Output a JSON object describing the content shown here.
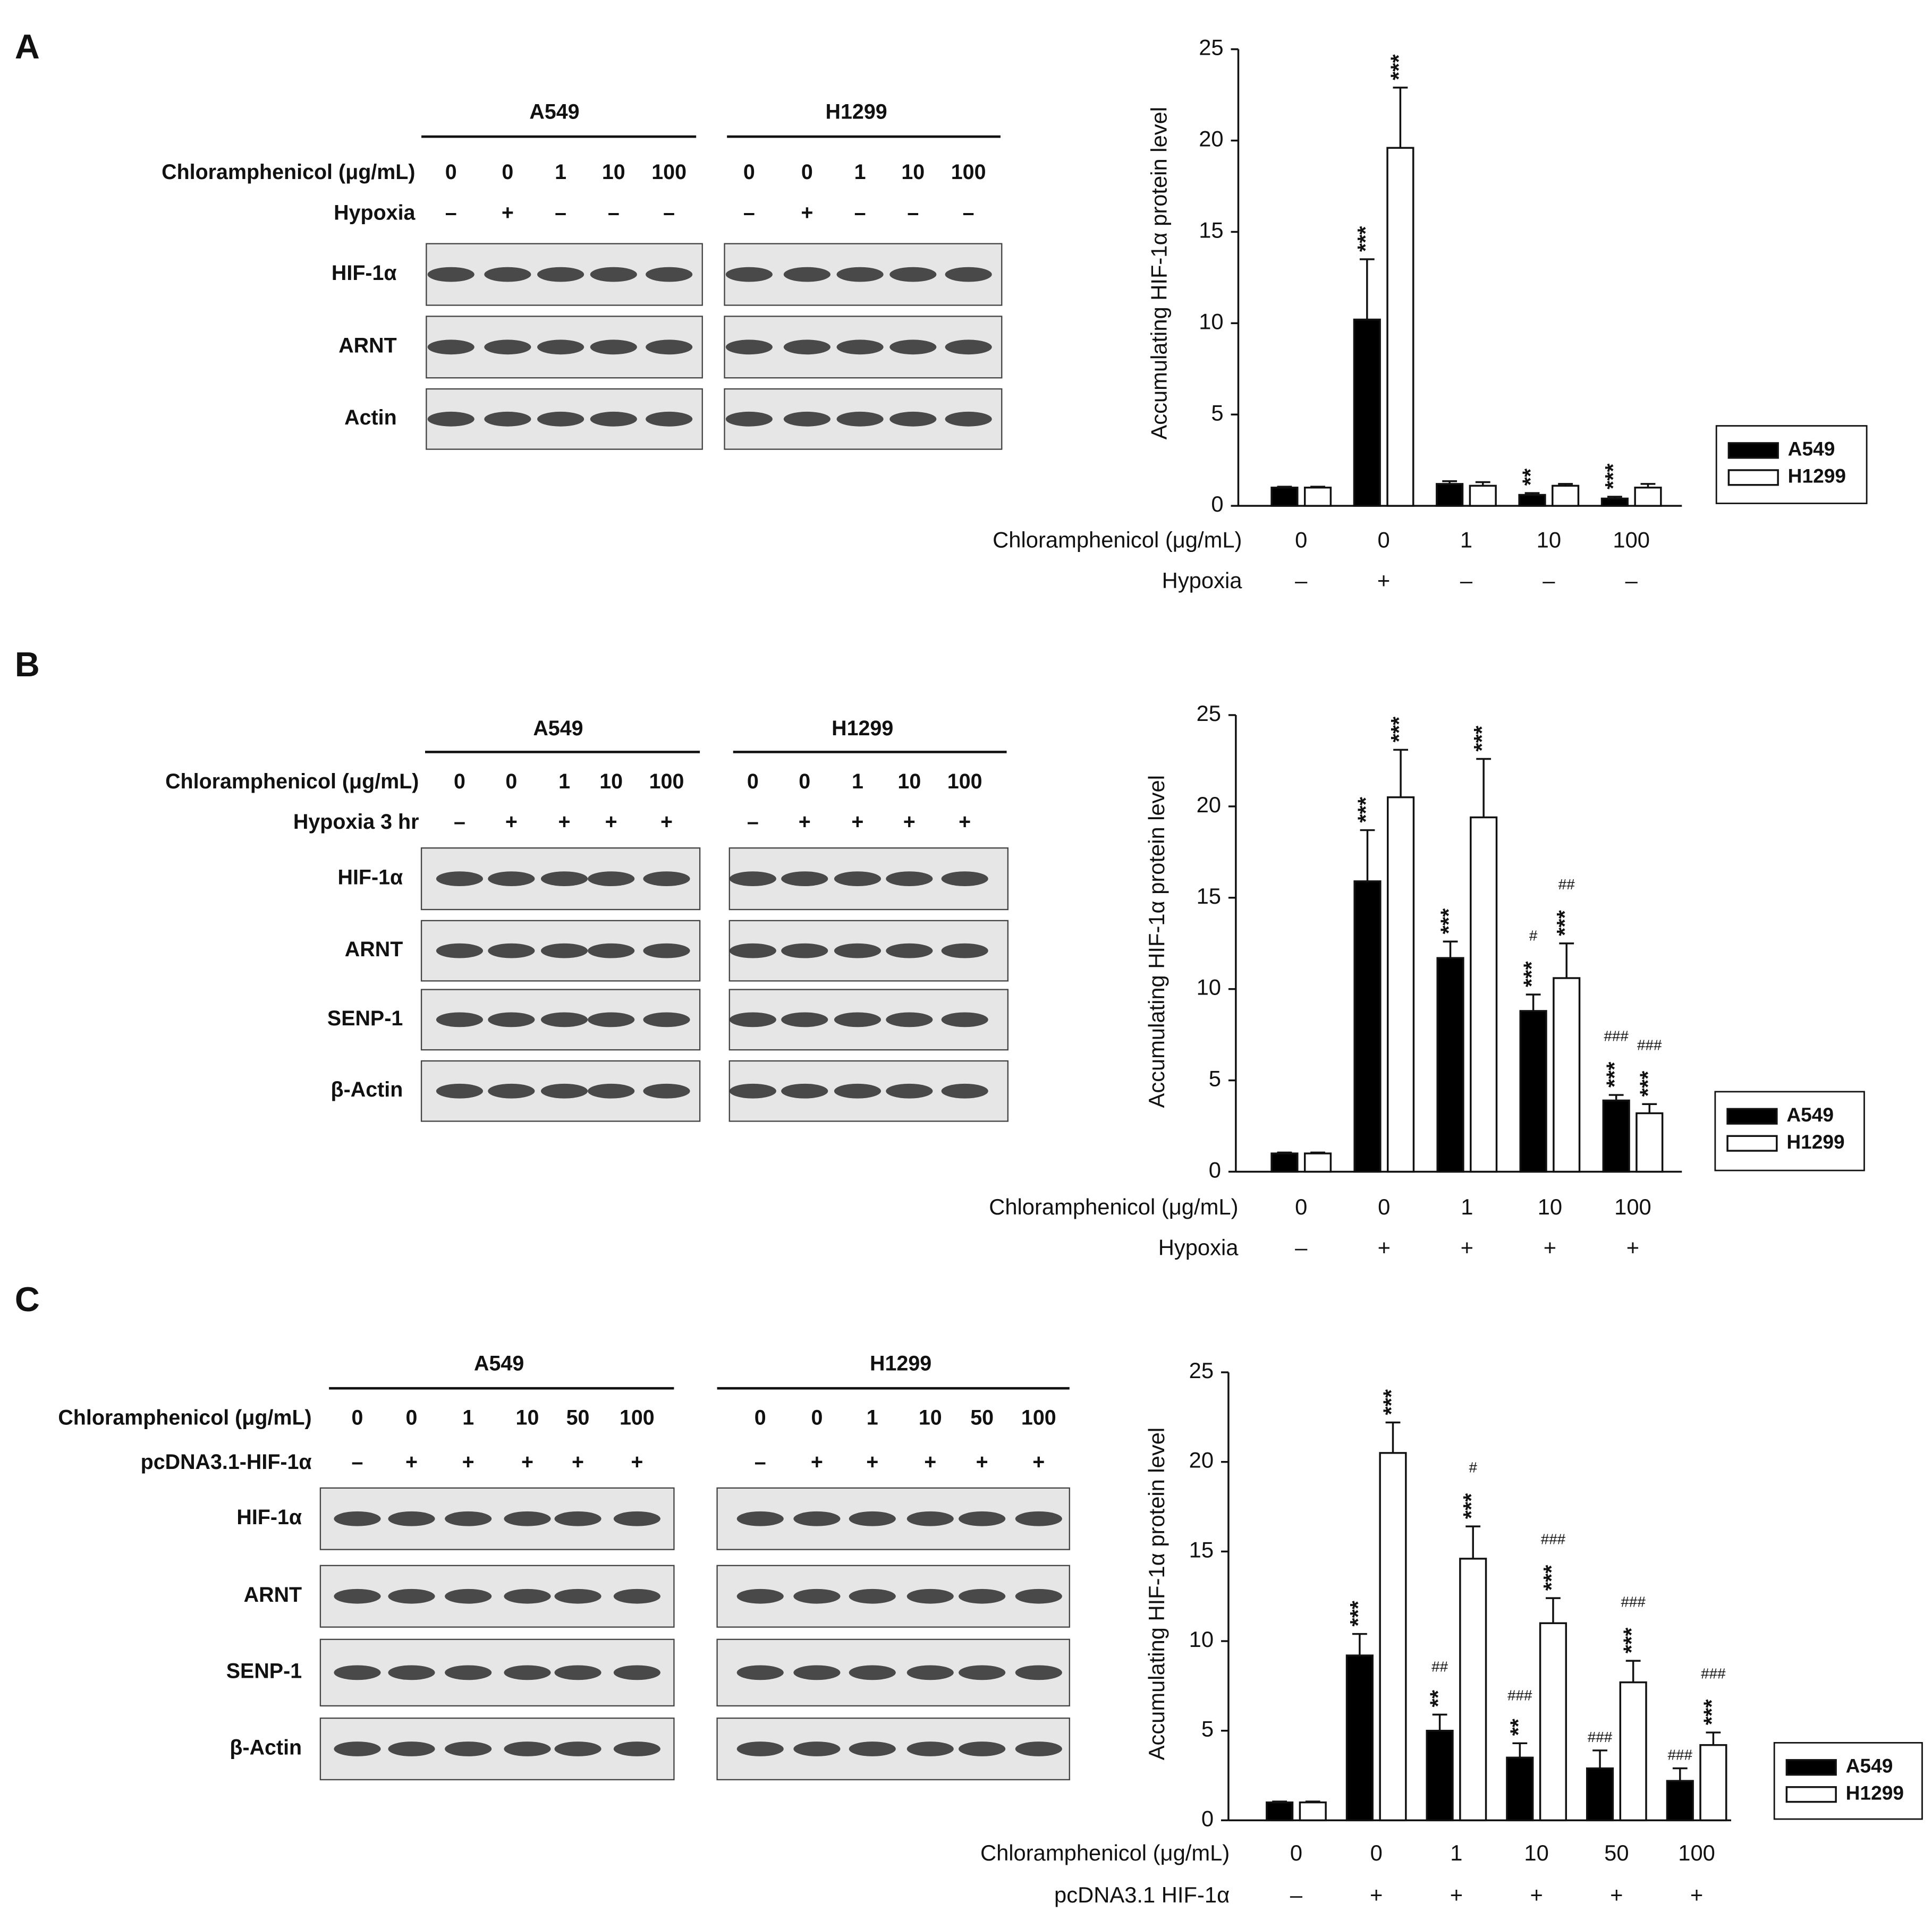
{
  "panel_labels": [
    "A",
    "B",
    "C"
  ],
  "blots": [
    {
      "groups": [
        "A549",
        "H1299"
      ],
      "rows": [
        {
          "label": "Chloramphenicol (μg/mL)",
          "lanes": [
            [
              "0",
              "0",
              "1",
              "10",
              "100"
            ],
            [
              "0",
              "0",
              "1",
              "10",
              "100"
            ]
          ]
        },
        {
          "label": "Hypoxia",
          "lanes": [
            [
              "–",
              "+",
              "–",
              "–",
              "–"
            ],
            [
              "–",
              "+",
              "–",
              "–",
              "–"
            ]
          ]
        }
      ],
      "bands": [
        "HIF-1α",
        "ARNT",
        "Actin"
      ]
    },
    {
      "groups": [
        "A549",
        "H1299"
      ],
      "rows": [
        {
          "label": "Chloramphenicol (μg/mL)",
          "lanes": [
            [
              "0",
              "0",
              "1",
              "10",
              "100"
            ],
            [
              "0",
              "0",
              "1",
              "10",
              "100"
            ]
          ]
        },
        {
          "label": "Hypoxia 3 hr",
          "lanes": [
            [
              "–",
              "+",
              "+",
              "+",
              "+"
            ],
            [
              "–",
              "+",
              "+",
              "+",
              "+"
            ]
          ]
        }
      ],
      "bands": [
        "HIF-1α",
        "ARNT",
        "SENP-1",
        "β-Actin"
      ]
    },
    {
      "groups": [
        "A549",
        "H1299"
      ],
      "rows": [
        {
          "label": "Chloramphenicol (μg/mL)",
          "lanes": [
            [
              "0",
              "0",
              "1",
              "10",
              "50",
              "100"
            ],
            [
              "0",
              "0",
              "1",
              "10",
              "50",
              "100"
            ]
          ]
        },
        {
          "label": "pcDNA3.1-HIF-1α",
          "lanes": [
            [
              "–",
              "+",
              "+",
              "+",
              "+",
              "+"
            ],
            [
              "–",
              "+",
              "+",
              "+",
              "+",
              "+"
            ]
          ]
        }
      ],
      "bands": [
        "HIF-1α",
        "ARNT",
        "SENP-1",
        "β-Actin"
      ]
    }
  ],
  "chart_data": [
    {
      "type": "bar",
      "ylabel": "Accumulating HIF-1α protein level",
      "xlabel": "Chloramphenicol (μg/mL)",
      "categories": [
        "0",
        "0",
        "1",
        "10",
        "100"
      ],
      "category_rows": [
        {
          "label": "Hypoxia",
          "values": [
            "–",
            "+",
            "–",
            "–",
            "–"
          ]
        }
      ],
      "ylim": [
        0,
        25
      ],
      "yticks": [
        0,
        5,
        10,
        15,
        20,
        25
      ],
      "legend": "right",
      "series": [
        {
          "name": "A549",
          "color": "#000000",
          "values": [
            1.0,
            10.2,
            1.2,
            0.6,
            0.4
          ],
          "errors": [
            0.05,
            3.3,
            0.15,
            0.1,
            0.1
          ],
          "annotations": [
            null,
            [
              "***"
            ],
            null,
            [
              "**"
            ],
            [
              "***"
            ]
          ]
        },
        {
          "name": "H1299",
          "color": "#ffffff",
          "values": [
            1.0,
            19.6,
            1.1,
            1.1,
            1.0
          ],
          "errors": [
            0.05,
            3.3,
            0.2,
            0.1,
            0.2
          ],
          "annotations": [
            null,
            [
              "***"
            ],
            null,
            null,
            null
          ]
        }
      ]
    },
    {
      "type": "bar",
      "ylabel": "Accumulating HIF-1α protein level",
      "xlabel": "Chloramphenicol (μg/mL)",
      "categories": [
        "0",
        "0",
        "1",
        "10",
        "100"
      ],
      "category_rows": [
        {
          "label": "Hypoxia",
          "values": [
            "–",
            "+",
            "+",
            "+",
            "+"
          ]
        }
      ],
      "ylim": [
        0,
        25
      ],
      "yticks": [
        0,
        5,
        10,
        15,
        20,
        25
      ],
      "legend": "right",
      "series": [
        {
          "name": "A549",
          "color": "#000000",
          "values": [
            1.0,
            15.9,
            11.7,
            8.8,
            3.9
          ],
          "errors": [
            0.05,
            2.8,
            0.9,
            0.9,
            0.3
          ],
          "annotations": [
            null,
            [
              "***"
            ],
            [
              "***"
            ],
            [
              "***",
              "#"
            ],
            [
              "***",
              "###"
            ]
          ]
        },
        {
          "name": "H1299",
          "color": "#ffffff",
          "values": [
            1.0,
            20.5,
            19.4,
            10.6,
            3.2
          ],
          "errors": [
            0.05,
            2.6,
            3.2,
            1.9,
            0.5
          ],
          "annotations": [
            null,
            [
              "***"
            ],
            [
              "***"
            ],
            [
              "***",
              "##"
            ],
            [
              "***",
              "###"
            ]
          ]
        }
      ]
    },
    {
      "type": "bar",
      "ylabel": "Accumulating HIF-1α protein level",
      "xlabel": "Chloramphenicol (μg/mL)",
      "categories": [
        "0",
        "0",
        "1",
        "10",
        "50",
        "100"
      ],
      "category_rows": [
        {
          "label": "pcDNA3.1 HIF-1α",
          "values": [
            "–",
            "+",
            "+",
            "+",
            "+",
            "+"
          ]
        }
      ],
      "ylim": [
        0,
        25
      ],
      "yticks": [
        0,
        5,
        10,
        15,
        20,
        25
      ],
      "legend": "right",
      "series": [
        {
          "name": "A549",
          "color": "#000000",
          "values": [
            1.0,
            9.2,
            5.0,
            3.5,
            2.9,
            2.2
          ],
          "errors": [
            0.05,
            1.2,
            0.9,
            0.8,
            1.0,
            0.7
          ],
          "annotations": [
            null,
            [
              "***"
            ],
            [
              "**",
              "##"
            ],
            [
              "**",
              "###"
            ],
            [
              "###"
            ],
            [
              "###"
            ]
          ]
        },
        {
          "name": "H1299",
          "color": "#ffffff",
          "values": [
            1.0,
            20.5,
            14.6,
            11.0,
            7.7,
            4.2
          ],
          "errors": [
            0.05,
            1.7,
            1.8,
            1.4,
            1.2,
            0.7
          ],
          "annotations": [
            null,
            [
              "***"
            ],
            [
              "***",
              "#"
            ],
            [
              "***",
              "###"
            ],
            [
              "***",
              "###"
            ],
            [
              "***",
              "###"
            ]
          ]
        }
      ]
    }
  ]
}
